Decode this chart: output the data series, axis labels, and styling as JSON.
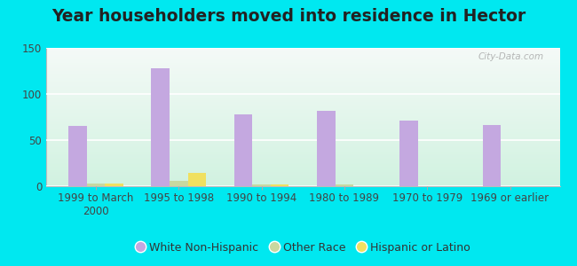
{
  "title": "Year householders moved into residence in Hector",
  "categories": [
    "1999 to March\n2000",
    "1995 to 1998",
    "1990 to 1994",
    "1980 to 1989",
    "1970 to 1979",
    "1969 or earlier"
  ],
  "white_non_hispanic": [
    65,
    128,
    78,
    82,
    71,
    66
  ],
  "other_race": [
    3,
    6,
    2,
    2,
    0,
    0
  ],
  "hispanic_or_latino": [
    3,
    14,
    2,
    0,
    0,
    0
  ],
  "white_color": "#c4a8e0",
  "other_color": "#c8d8a0",
  "hispanic_color": "#f0e060",
  "bg_outer": "#00e8f0",
  "ylim": [
    0,
    150
  ],
  "yticks": [
    0,
    50,
    100,
    150
  ],
  "bar_width": 0.22,
  "title_fontsize": 13.5,
  "tick_fontsize": 8.5,
  "legend_fontsize": 9
}
